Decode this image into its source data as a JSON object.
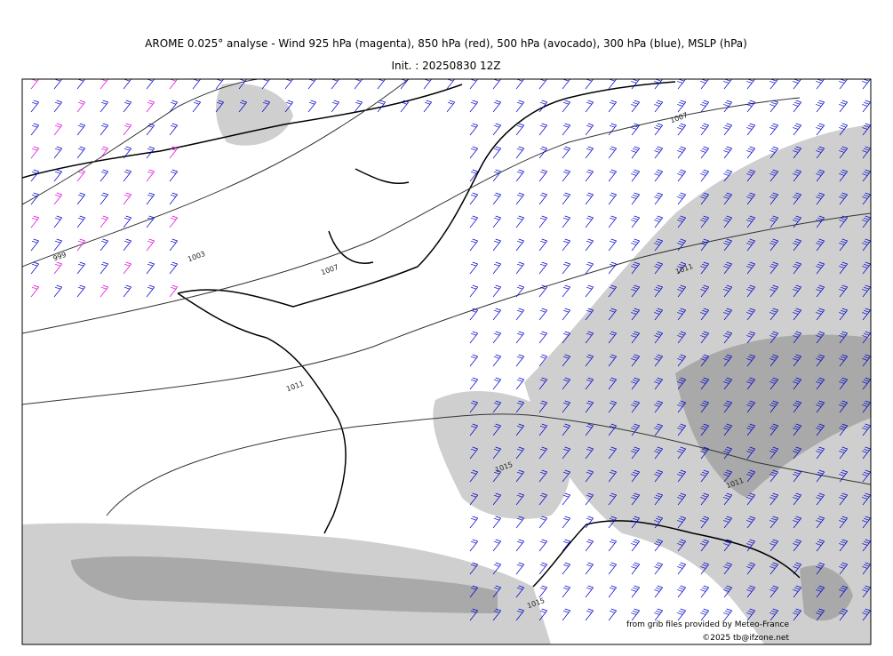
{
  "header": {
    "title": "AROME 0.025° analyse - Wind 925 hPa (magenta), 850 hPa (red), 500 hPa (avocado), 300 hPa (blue), MSLP (hPa)",
    "subtitle": "Init. : 20250830 12Z"
  },
  "map": {
    "isobar_labels": [
      "999",
      "1003",
      "1007",
      "1011",
      "1015",
      "1011",
      "1015",
      "1011",
      "1007"
    ],
    "credits": [
      "from grib files provided by Meteo-France",
      "©2025 tb@ifzone.net"
    ]
  }
}
